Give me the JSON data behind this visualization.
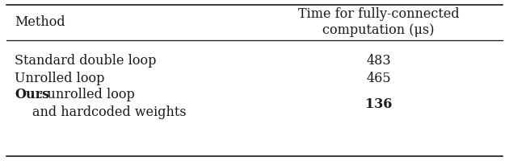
{
  "col_header_line1": "Time for fully-connected",
  "col_header_line2": "computation (μs)",
  "col1_header": "Method",
  "rows": [
    {
      "method_line1": "Standard double loop",
      "method_line2": null,
      "method_bold_prefix": null,
      "value": "483",
      "value_bold": false
    },
    {
      "method_line1": "Unrolled loop",
      "method_line2": null,
      "method_bold_prefix": null,
      "value": "465",
      "value_bold": false
    },
    {
      "method_line1": ": unrolled loop",
      "method_line2": "    and hardcoded weights",
      "method_bold_prefix": "Ours",
      "value": "136",
      "value_bold": true
    }
  ],
  "bg_color": "#ffffff",
  "text_color": "#1a1a1a",
  "font_size": 11.5,
  "col_split": 0.48
}
